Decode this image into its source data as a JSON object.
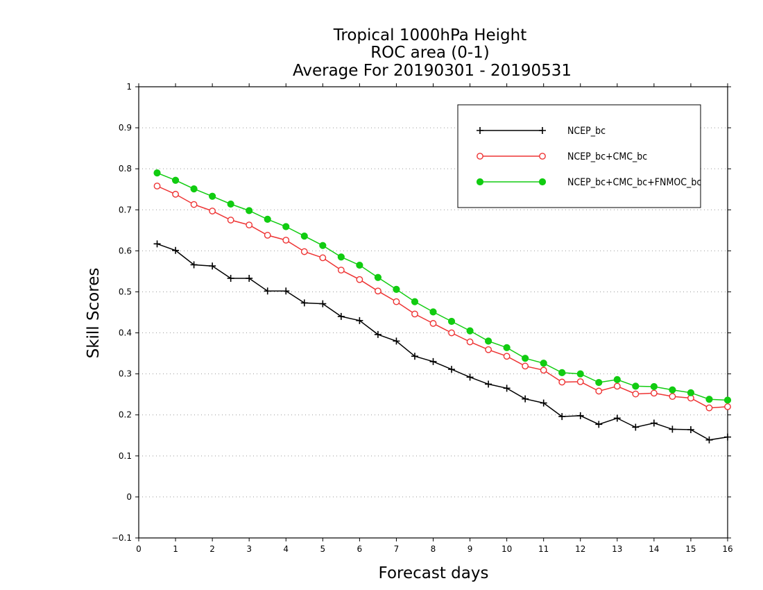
{
  "chart_data": {
    "type": "line",
    "title": [
      "Tropical 1000hPa Height",
      "ROC area (0-1)",
      "Average For 20190301 - 20190531"
    ],
    "xlabel": "Forecast days",
    "ylabel": "Skill Scores",
    "xlim": [
      0,
      16
    ],
    "ylim": [
      -0.1,
      1
    ],
    "xticks": [
      "0",
      "1",
      "2",
      "3",
      "4",
      "5",
      "6",
      "7",
      "8",
      "9",
      "10",
      "11",
      "12",
      "13",
      "14",
      "15",
      "16"
    ],
    "yticks": [
      "−0.1",
      "0",
      "0.1",
      "0.2",
      "0.3",
      "0.4",
      "0.5",
      "0.6",
      "0.7",
      "0.8",
      "0.9",
      "1"
    ],
    "grid": "horizontal dotted",
    "legend_position": "top-right",
    "x": [
      0.5,
      1,
      1.5,
      2,
      2.5,
      3,
      3.5,
      4,
      4.5,
      5,
      5.5,
      6,
      6.5,
      7,
      7.5,
      8,
      8.5,
      9,
      9.5,
      10,
      10.5,
      11,
      11.5,
      12,
      12.5,
      13,
      13.5,
      14,
      14.5,
      15,
      15.5,
      16
    ],
    "series": [
      {
        "name": "NCEP_bc",
        "color": "#000000",
        "marker": "plus",
        "values": [
          0.617,
          0.601,
          0.566,
          0.563,
          0.533,
          0.533,
          0.502,
          0.502,
          0.473,
          0.471,
          0.44,
          0.43,
          0.396,
          0.38,
          0.343,
          0.33,
          0.311,
          0.292,
          0.275,
          0.265,
          0.239,
          0.229,
          0.196,
          0.198,
          0.177,
          0.192,
          0.17,
          0.18,
          0.165,
          0.164,
          0.139,
          0.146
        ]
      },
      {
        "name": "NCEP_bc+CMC_bc",
        "color": "#ee3333",
        "marker": "open-circle",
        "values": [
          0.758,
          0.738,
          0.713,
          0.697,
          0.675,
          0.663,
          0.638,
          0.626,
          0.598,
          0.583,
          0.553,
          0.53,
          0.502,
          0.476,
          0.446,
          0.423,
          0.4,
          0.378,
          0.359,
          0.343,
          0.319,
          0.309,
          0.28,
          0.281,
          0.258,
          0.27,
          0.251,
          0.253,
          0.245,
          0.241,
          0.217,
          0.22
        ]
      },
      {
        "name": "NCEP_bc+CMC_bc+FNMOC_bc",
        "color": "#11cc11",
        "marker": "filled-circle",
        "values": [
          0.79,
          0.772,
          0.751,
          0.733,
          0.714,
          0.698,
          0.677,
          0.659,
          0.636,
          0.613,
          0.585,
          0.565,
          0.535,
          0.506,
          0.476,
          0.451,
          0.428,
          0.405,
          0.38,
          0.364,
          0.338,
          0.326,
          0.303,
          0.3,
          0.279,
          0.286,
          0.27,
          0.269,
          0.261,
          0.254,
          0.238,
          0.236
        ]
      }
    ]
  }
}
